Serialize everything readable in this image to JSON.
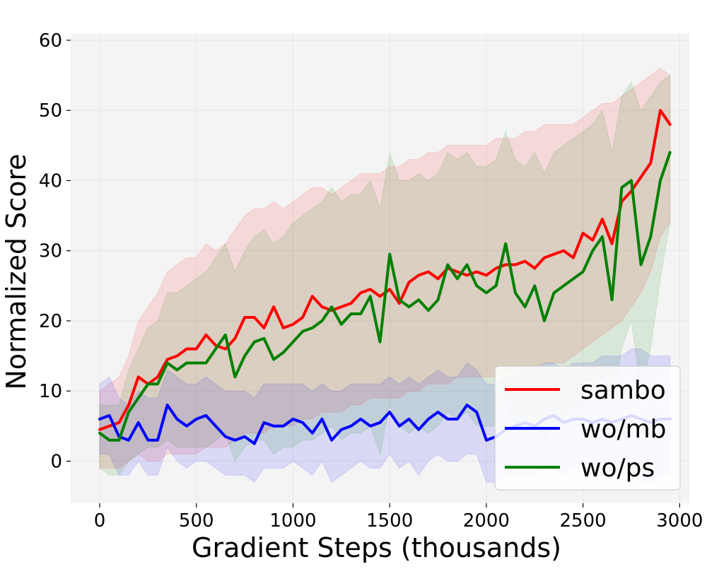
{
  "chart_data": {
    "type": "line",
    "title": "",
    "xlabel": "Gradient Steps (thousands)",
    "ylabel": "Normalized Score",
    "xlim": [
      -150,
      3050
    ],
    "ylim": [
      -6,
      61
    ],
    "xticks": [
      0,
      500,
      1000,
      1500,
      2000,
      2500,
      3000
    ],
    "yticks": [
      0,
      10,
      20,
      30,
      40,
      50,
      60
    ],
    "xtick_labels": [
      "0",
      "500",
      "1000",
      "1500",
      "2000",
      "2500",
      "3000"
    ],
    "ytick_labels": [
      "0",
      "10",
      "20",
      "30",
      "40",
      "50",
      "60"
    ],
    "grid": true,
    "legend_position": "bottom-right",
    "series": [
      {
        "name": "sambo",
        "color": "#ff0000",
        "x": [
          0,
          50,
          100,
          150,
          200,
          250,
          300,
          350,
          400,
          450,
          500,
          550,
          600,
          650,
          700,
          750,
          800,
          850,
          900,
          950,
          1000,
          1050,
          1100,
          1150,
          1200,
          1250,
          1300,
          1350,
          1400,
          1450,
          1500,
          1550,
          1600,
          1650,
          1700,
          1750,
          1800,
          1850,
          1900,
          1950,
          2000,
          2050,
          2100,
          2150,
          2200,
          2250,
          2300,
          2350,
          2400,
          2450,
          2500,
          2550,
          2600,
          2650,
          2700,
          2750,
          2800,
          2850,
          2900,
          2950
        ],
        "y": [
          4.5,
          5,
          5.5,
          8,
          12,
          11,
          12,
          14.5,
          15,
          16,
          16,
          18,
          16.5,
          16,
          17.5,
          20.5,
          20.5,
          19,
          22,
          19,
          19.5,
          20.5,
          23.5,
          22,
          21.5,
          22,
          22.5,
          24,
          24.5,
          23.5,
          24.5,
          22.5,
          25.5,
          26.5,
          27,
          26,
          27.5,
          27,
          26.5,
          27,
          26.5,
          27.5,
          28,
          28,
          28.5,
          27.5,
          29,
          29.5,
          30,
          29,
          32.5,
          31.5,
          34.5,
          31,
          37,
          38.5,
          40.5,
          42.5,
          50,
          48
        ],
        "upper": [
          10,
          11,
          12,
          15,
          20,
          22,
          24,
          27,
          28,
          29,
          29,
          31,
          30,
          31,
          33,
          35,
          36,
          36,
          37,
          36,
          37,
          38,
          39,
          39,
          38,
          39,
          40,
          41,
          41,
          41,
          42,
          42,
          43,
          43,
          44,
          44,
          45,
          45,
          45,
          45,
          45,
          46,
          46,
          46,
          47,
          47,
          48,
          48,
          48,
          48,
          49,
          50,
          51,
          51,
          52,
          53,
          54,
          55,
          56,
          55
        ],
        "lower": [
          -1,
          -1,
          -1,
          0,
          1,
          0,
          0,
          1,
          1,
          1,
          1,
          2,
          2,
          2,
          3,
          4,
          4,
          4,
          5,
          5,
          5,
          6,
          6,
          7,
          7,
          7,
          8,
          8,
          9,
          9,
          9,
          9,
          10,
          10,
          11,
          11,
          11,
          12,
          12,
          12,
          12,
          12,
          13,
          13,
          13,
          13,
          14,
          14,
          14,
          15,
          16,
          17,
          18,
          19,
          20,
          22,
          24,
          27,
          32,
          34
        ]
      },
      {
        "name": "wo/mb",
        "color": "#0000ff",
        "x": [
          0,
          50,
          100,
          150,
          200,
          250,
          300,
          350,
          400,
          450,
          500,
          550,
          600,
          650,
          700,
          750,
          800,
          850,
          900,
          950,
          1000,
          1050,
          1100,
          1150,
          1200,
          1250,
          1300,
          1350,
          1400,
          1450,
          1500,
          1550,
          1600,
          1650,
          1700,
          1750,
          1800,
          1850,
          1900,
          1950,
          2000,
          2050,
          2100,
          2150,
          2200,
          2250,
          2300,
          2350,
          2400,
          2450,
          2500,
          2550,
          2600,
          2650,
          2700,
          2750,
          2800,
          2850,
          2900,
          2950
        ],
        "y": [
          6,
          6.5,
          3.5,
          3,
          5.5,
          3,
          3,
          8,
          6,
          5,
          6,
          6.5,
          5,
          3.5,
          3,
          3.5,
          2.5,
          5.5,
          5,
          5,
          6,
          5.5,
          4,
          6,
          3,
          4.5,
          5,
          6,
          5,
          5.5,
          7,
          5,
          6,
          4.5,
          6,
          7,
          6,
          6,
          8,
          7,
          3,
          3.5,
          4.5,
          5,
          5.5,
          5,
          6,
          6.5,
          5.5,
          6,
          6,
          5.5,
          6,
          5.5,
          6,
          6.5,
          6,
          5.5,
          6,
          6
        ],
        "upper": [
          11,
          12,
          9,
          8,
          10,
          9,
          9,
          13,
          12,
          11,
          11,
          12,
          11,
          10,
          10,
          10,
          9,
          11,
          11,
          11,
          11,
          11,
          10,
          11,
          10,
          10,
          11,
          11,
          11,
          11,
          12,
          11,
          12,
          11,
          12,
          13,
          12,
          12,
          14,
          13,
          11,
          11,
          12,
          12,
          13,
          13,
          14,
          14,
          13,
          14,
          14,
          14,
          15,
          15,
          15,
          16,
          16,
          15,
          15,
          15
        ],
        "lower": [
          1,
          1,
          -2,
          -2,
          0,
          -2,
          -2,
          2,
          0,
          -1,
          0,
          0,
          -1,
          -2,
          -2,
          -2,
          -3,
          -1,
          -1,
          -1,
          0,
          -1,
          -2,
          0,
          -3,
          -2,
          -1,
          0,
          -1,
          -1,
          1,
          -1,
          0,
          -2,
          0,
          1,
          0,
          0,
          1,
          1,
          -3,
          -3,
          -2,
          -2,
          -2,
          -2,
          -1,
          -1,
          -2,
          -1,
          -1,
          -2,
          -2,
          -2,
          -2,
          -2,
          -3,
          -3,
          -2,
          -2
        ]
      },
      {
        "name": "wo/ps",
        "color": "#008000",
        "x": [
          0,
          50,
          100,
          150,
          200,
          250,
          300,
          350,
          400,
          450,
          500,
          550,
          600,
          650,
          700,
          750,
          800,
          850,
          900,
          950,
          1000,
          1050,
          1100,
          1150,
          1200,
          1250,
          1300,
          1350,
          1400,
          1450,
          1500,
          1550,
          1600,
          1650,
          1700,
          1750,
          1800,
          1850,
          1900,
          1950,
          2000,
          2050,
          2100,
          2150,
          2200,
          2250,
          2300,
          2350,
          2400,
          2450,
          2500,
          2550,
          2600,
          2650,
          2700,
          2750,
          2800,
          2850,
          2900,
          2950
        ],
        "y": [
          4,
          3,
          3,
          7,
          9,
          11,
          11,
          14,
          13,
          14,
          14,
          14,
          16,
          18,
          12,
          15,
          17,
          17.5,
          14.5,
          15.5,
          17,
          18.5,
          19,
          20,
          22,
          19.5,
          21,
          21,
          23.5,
          17,
          29.5,
          23,
          22,
          23,
          21.5,
          23,
          28,
          26,
          28,
          25,
          24,
          25,
          31,
          24,
          22,
          25,
          20,
          24,
          25,
          26,
          27,
          30,
          32,
          23,
          39,
          40,
          28,
          32,
          40,
          44
        ],
        "upper": [
          8,
          8,
          8,
          13,
          16,
          19,
          20,
          24,
          24,
          25,
          26,
          27,
          29,
          31,
          27,
          30,
          32,
          33,
          31,
          32,
          34,
          35,
          36,
          37,
          39,
          37,
          38,
          38,
          40,
          36,
          44,
          40,
          40,
          41,
          40,
          41,
          44,
          43,
          44,
          42,
          42,
          43,
          47,
          43,
          42,
          44,
          41,
          44,
          45,
          46,
          47,
          48,
          50,
          44,
          52,
          54,
          50,
          52,
          54,
          55
        ],
        "lower": [
          -1,
          -2,
          -2,
          0,
          1,
          2,
          2,
          3,
          2,
          2,
          2,
          2,
          3,
          4,
          0,
          2,
          3,
          3,
          1,
          2,
          2,
          3,
          3,
          4,
          5,
          3,
          4,
          4,
          5,
          1,
          8,
          5,
          4,
          5,
          4,
          5,
          7,
          6,
          7,
          5,
          5,
          5,
          9,
          5,
          4,
          6,
          3,
          5,
          6,
          7,
          8,
          10,
          12,
          8,
          16,
          20,
          10,
          16,
          26,
          34
        ]
      }
    ]
  }
}
